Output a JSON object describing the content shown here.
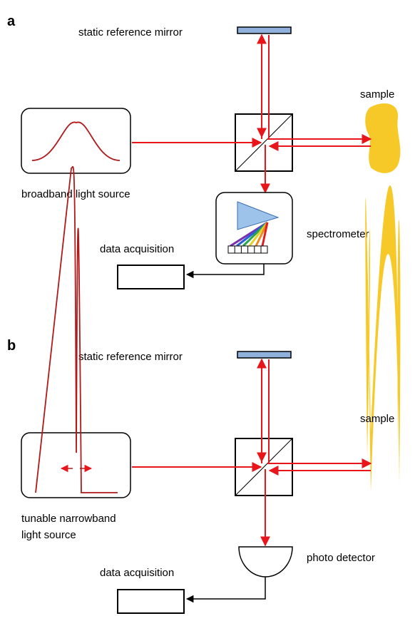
{
  "panels": [
    {
      "label": "a",
      "mirror_label": "static reference mirror",
      "sample_label": "sample",
      "source_label": [
        "broadband light source"
      ],
      "detector_label": "spectrometer",
      "acquisition_label": "data acquisition"
    },
    {
      "label": "b",
      "mirror_label": "static reference mirror",
      "sample_label": "sample",
      "source_label": [
        "tunable narrowband",
        "light source"
      ],
      "detector_label": "photo detector",
      "acquisition_label": "data acquisition"
    }
  ]
}
